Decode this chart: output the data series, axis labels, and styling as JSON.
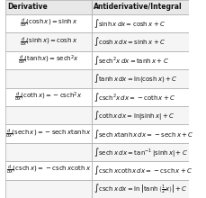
{
  "title_left": "Derivative",
  "title_right": "Antiderivative/Integral",
  "rows": [
    [
      "$\\frac{d}{dx}(\\cosh x) = \\sinh x$",
      "$\\int \\sinh x\\, dx = \\cosh x + C$"
    ],
    [
      "$\\frac{d}{dx}(\\sinh x) = \\cosh x$",
      "$\\int \\cosh x\\, dx = \\sinh x + C$"
    ],
    [
      "$\\frac{d}{dx}(\\tanh x) = \\mathrm{sech}^2 x$",
      "$\\int \\mathrm{sech}^2 x\\, dx = \\tanh x + C$"
    ],
    [
      "",
      "$\\int \\tanh x\\, dx = \\ln(\\cosh x) + C$"
    ],
    [
      "$\\frac{d}{dx}(\\coth x) = -\\mathrm{csch}^2 x$",
      "$\\int \\mathrm{csch}^2 x\\, dx = -\\coth x + C$"
    ],
    [
      "",
      "$\\int \\coth x\\, dx = \\ln|\\sinh x| + C$"
    ],
    [
      "$\\frac{d}{dx}(\\mathrm{sech}\\, x) = -\\mathrm{sech}\\, x\\tanh x$",
      "$\\int \\mathrm{sech}\\, x\\tanh x\\, dx = -\\mathrm{sech}\\, x + C$"
    ],
    [
      "",
      "$\\int \\mathrm{sech}\\, x\\, dx = \\tan^{-1}|\\sinh x| + C$"
    ],
    [
      "$\\frac{d}{dx}(\\mathrm{csch}\\, x) = -\\mathrm{csch}\\, x\\coth x$",
      "$\\int \\mathrm{csch}\\, x\\coth x\\, dx = -\\mathrm{csch}\\, x + C$"
    ],
    [
      "",
      "$\\int \\mathrm{csch}\\, x\\, dx = \\ln\\left|\\tanh\\left(\\frac{1}{2}x\\right)\\right| + C$"
    ]
  ],
  "col_split": 0.47,
  "header_bg": "#e8e8e8",
  "row_bg_odd": "#ffffff",
  "row_bg_even": "#f5f5f5",
  "border_color": "#aaaaaa",
  "text_color": "#111111",
  "header_fontsize": 5.5,
  "cell_fontsize": 5.0
}
